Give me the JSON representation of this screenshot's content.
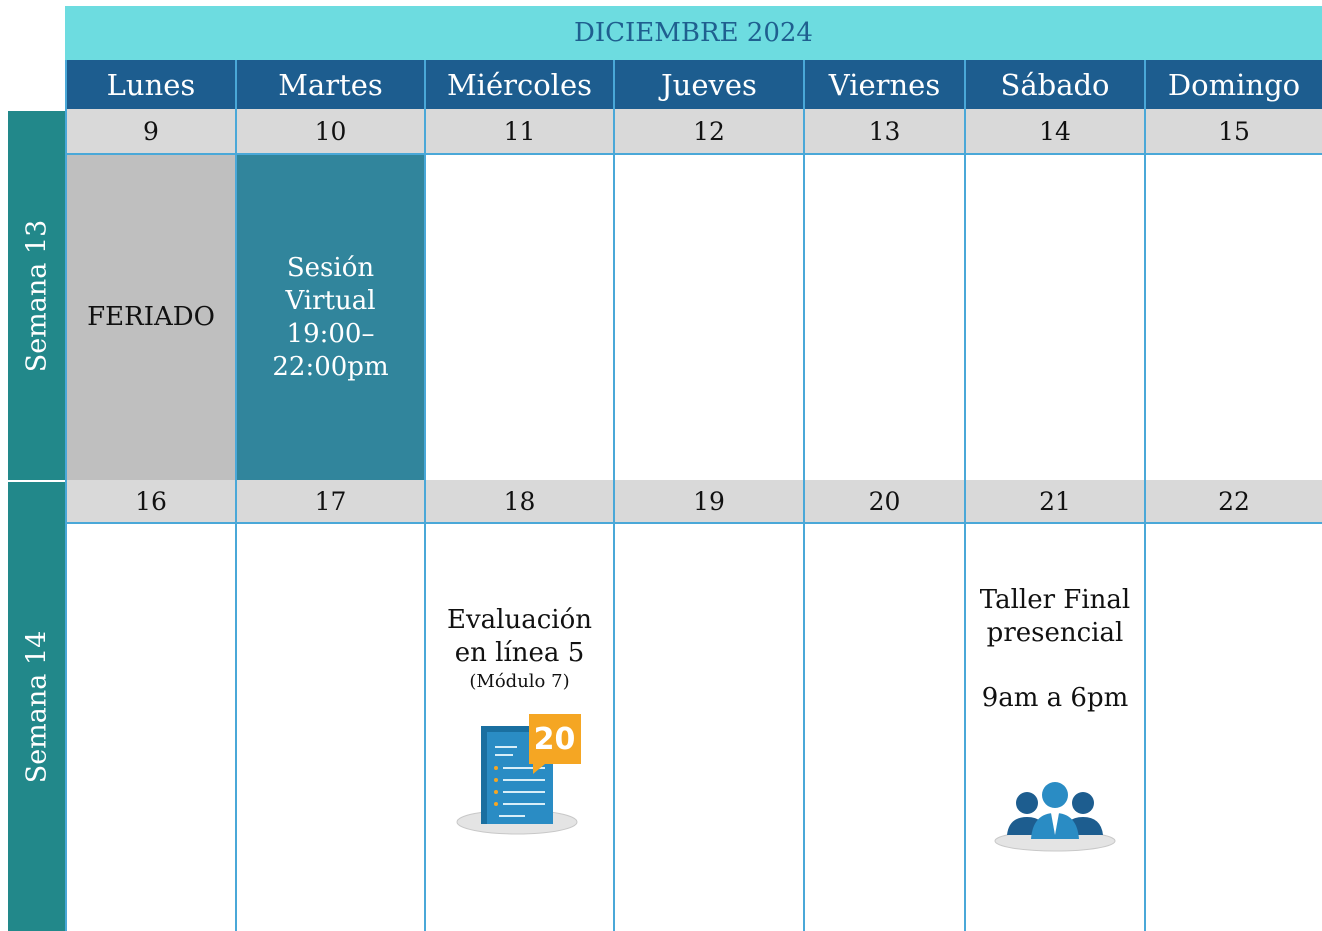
{
  "header": {
    "title": "DICIEMBRE 2024"
  },
  "days": [
    "Lunes",
    "Martes",
    "Miércoles",
    "Jueves",
    "Viernes",
    "Sábado",
    "Domingo"
  ],
  "weeks": [
    {
      "label": "Semana 13",
      "dates": [
        9,
        10,
        11,
        12,
        13,
        14,
        15
      ],
      "cells": [
        {
          "lines": [
            "FERIADO"
          ]
        },
        {
          "lines": [
            "Sesión",
            "Virtual",
            "19:00–",
            "22:00pm"
          ]
        },
        null,
        null,
        null,
        null,
        null
      ]
    },
    {
      "label": "Semana 14",
      "dates": [
        16,
        17,
        18,
        19,
        20,
        21,
        22
      ],
      "cells": [
        null,
        null,
        {
          "lines": [
            "Evaluación",
            "en línea 5"
          ],
          "note": "(Módulo 7)",
          "badge": "20"
        },
        null,
        null,
        {
          "lines": [
            "Taller Final",
            "presencial"
          ],
          "time": "9am a 6pm"
        },
        null
      ]
    }
  ]
}
